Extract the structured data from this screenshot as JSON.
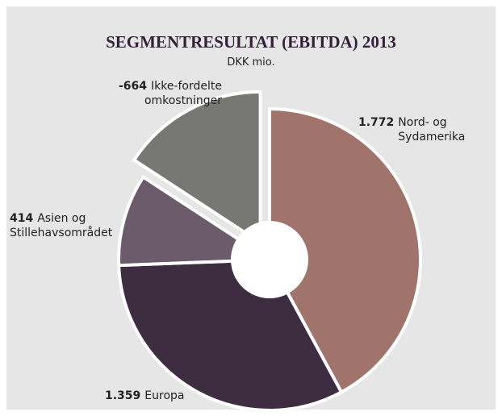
{
  "chart_data": {
    "type": "donut",
    "title": "SEGMENTRESULTAT (EBITDA) 2013",
    "subtitle": "DKK mio.",
    "categories": [
      "Nord- og Sydamerika",
      "Europa",
      "Asien og Stillehavsområdet",
      "Ikke-fordelte omkostninger"
    ],
    "values": [
      1772,
      1359,
      414,
      -664
    ],
    "value_labels": [
      "1.772",
      "1.359",
      "414",
      "-664"
    ],
    "colors": [
      "#a0736b",
      "#3e2d40",
      "#6c5b6b",
      "#777773"
    ],
    "explode": [
      false,
      false,
      false,
      true
    ]
  }
}
